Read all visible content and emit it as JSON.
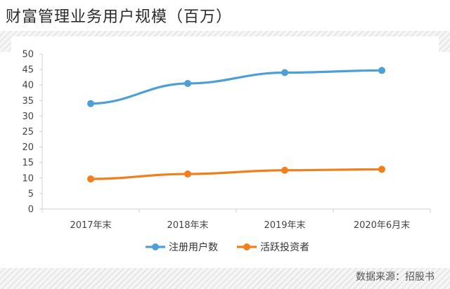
{
  "page": {
    "title": "财富管理业务用户规模（百万）",
    "source": "数据来源：招股书"
  },
  "colors": {
    "registered": "#4e9fd6",
    "active": "#f07f1d",
    "axis": "#d0d0d0",
    "tick_text": "#444444"
  },
  "chart_data": {
    "type": "line",
    "title": "财富管理业务用户规模（百万）",
    "categories": [
      "2017年末",
      "2018年末",
      "2019年末",
      "2020年6月末"
    ],
    "series": [
      {
        "name": "注册用户数",
        "values": [
          34.0,
          40.5,
          44.0,
          44.7
        ]
      },
      {
        "name": "活跃投资者",
        "values": [
          9.7,
          11.3,
          12.5,
          12.8
        ]
      }
    ],
    "xlabel": "",
    "ylabel": "",
    "ylim": [
      0,
      50
    ],
    "yticks": [
      0,
      5,
      10,
      15,
      20,
      25,
      30,
      35,
      40,
      45,
      50
    ],
    "grid": false,
    "legend_position": "bottom"
  }
}
